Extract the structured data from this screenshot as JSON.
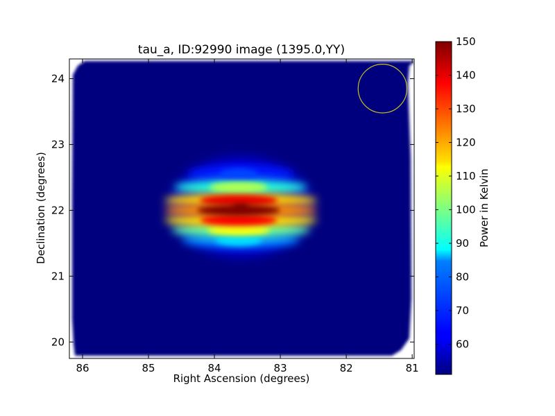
{
  "chart_data": {
    "type": "heatmap",
    "title": "tau_a, ID:92990 image (1395.0,YY)",
    "xlabel": "Right Ascension (degrees)",
    "ylabel": "Declination (degrees)",
    "xlim": [
      86.2,
      80.97
    ],
    "ylim": [
      19.75,
      24.3
    ],
    "x_ticks": [
      86,
      85,
      84,
      83,
      82,
      81
    ],
    "y_ticks": [
      20,
      21,
      22,
      23,
      24
    ],
    "x_tick_labels": [
      "86",
      "85",
      "84",
      "83",
      "82",
      "81"
    ],
    "y_tick_labels": [
      "20",
      "21",
      "22",
      "23",
      "24"
    ],
    "colorbar": {
      "label": "Power in Kelvin",
      "range": [
        51,
        150
      ],
      "ticks": [
        60,
        70,
        80,
        90,
        100,
        110,
        120,
        130,
        140,
        150
      ],
      "tick_labels": [
        "60",
        "70",
        "80",
        "90",
        "100",
        "110",
        "120",
        "130",
        "140",
        "150"
      ],
      "colormap": "jet"
    },
    "background_level": 53,
    "source": {
      "peak_ra": 83.6,
      "peak_dec": 22.05,
      "peak_value": 150,
      "lobes": [
        {
          "dec": 22.55,
          "value": 70
        },
        {
          "dec": 22.35,
          "value": 105
        },
        {
          "dec": 22.15,
          "value": 140
        },
        {
          "dec": 22.0,
          "value": 150
        },
        {
          "dec": 21.85,
          "value": 138
        },
        {
          "dec": 21.7,
          "value": 112
        },
        {
          "dec": 21.55,
          "value": 85
        }
      ]
    },
    "beam_circle": {
      "ra": 81.45,
      "dec": 23.85,
      "radius_deg": 0.37,
      "color": "#c8c020"
    },
    "grid": false,
    "colors": {
      "background_fill": "#00007f",
      "axes": "#000000"
    }
  }
}
